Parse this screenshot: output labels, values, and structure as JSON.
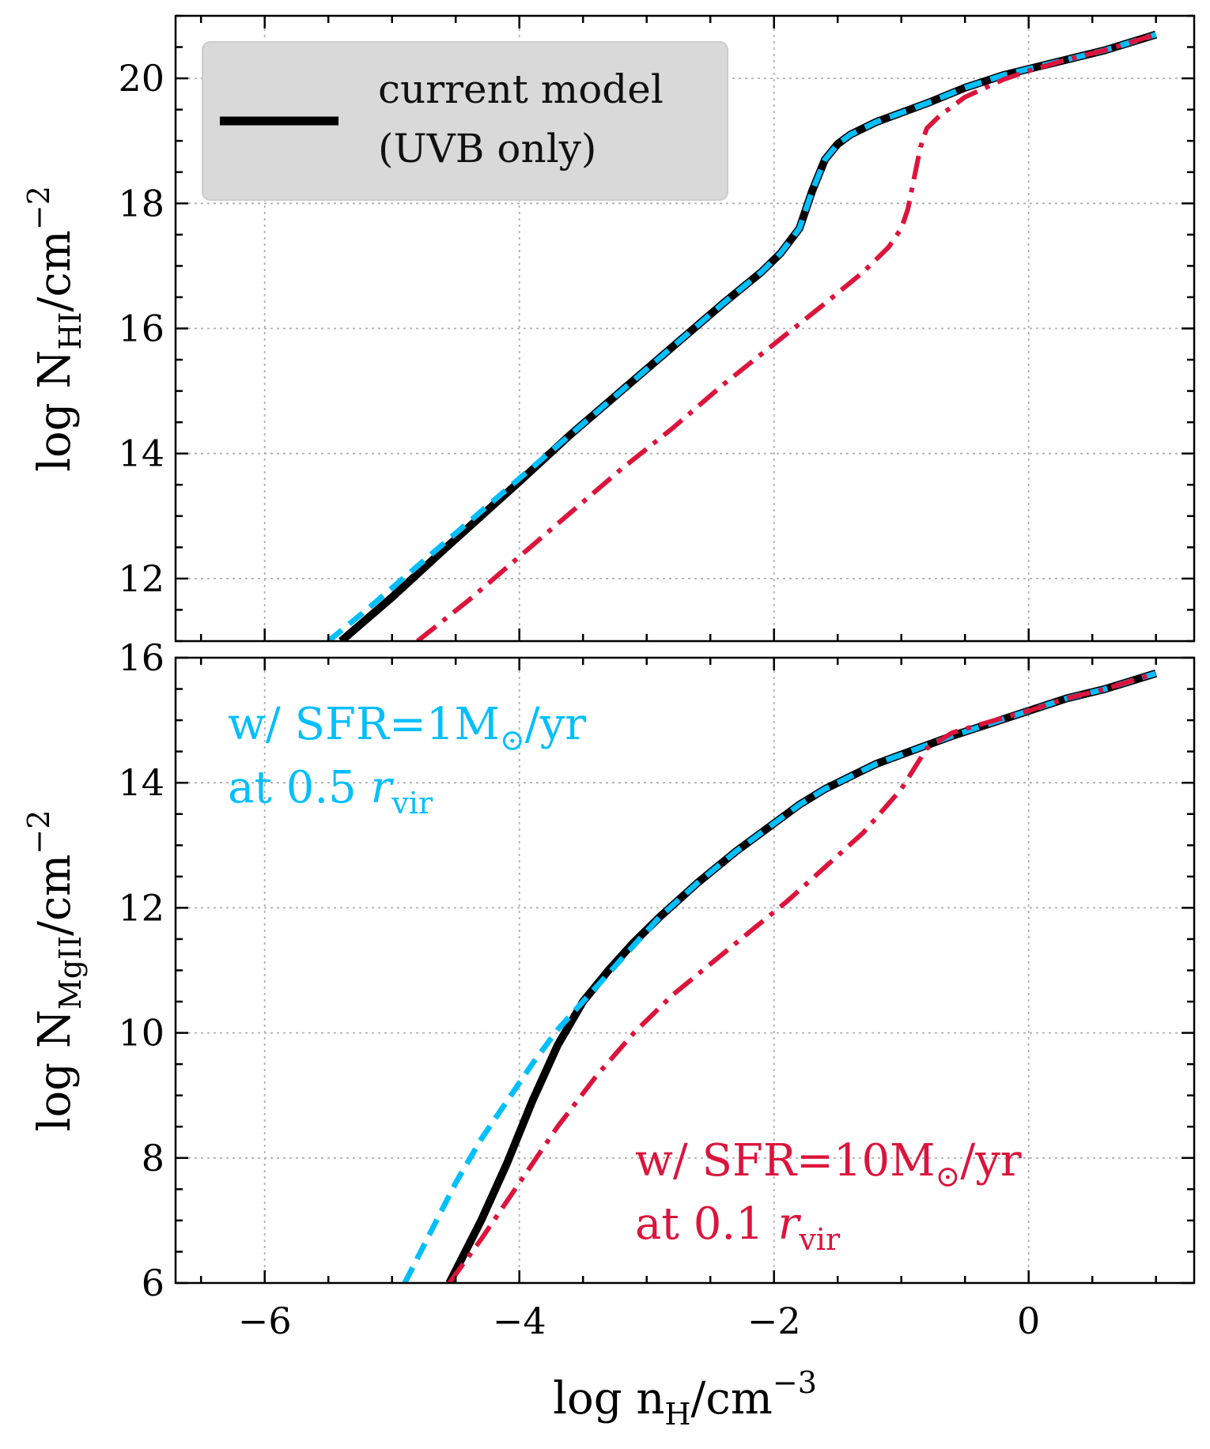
{
  "colors": {
    "uvb": "#000000",
    "sfr1": "#00BFFF",
    "sfr10": "#DC143C",
    "legend_bg": "#d9d9d9"
  },
  "chart_data": [
    {
      "type": "line",
      "panel": "top",
      "xlabel": "log n_H/cm^-3",
      "ylabel_parts": {
        "main": "log N",
        "sub": "HI",
        "unit": "/cm",
        "sup": "−2"
      },
      "xlim": [
        -6.7,
        1.3
      ],
      "ylim": [
        11,
        21
      ],
      "xticks": [
        -6,
        -4,
        -2,
        0
      ],
      "yticks": [
        12,
        14,
        16,
        18,
        20
      ],
      "ytick_labels": [
        "12",
        "14",
        "16",
        "18",
        "20"
      ],
      "legend": {
        "line1": "current model",
        "line2": "(UVB only)",
        "position": "top-left"
      },
      "series": [
        {
          "name": "current model (UVB only)",
          "style": "solid",
          "color_key": "uvb",
          "x": [
            -5.4,
            -5.2,
            -5.0,
            -4.6,
            -4.0,
            -3.6,
            -3.2,
            -2.8,
            -2.4,
            -2.1,
            -1.95,
            -1.8,
            -1.7,
            -1.6,
            -1.5,
            -1.4,
            -1.2,
            -1.0,
            -0.8,
            -0.5,
            -0.2,
            0.0,
            0.3,
            0.6,
            1.0
          ],
          "y": [
            11.0,
            11.35,
            11.7,
            12.45,
            13.55,
            14.3,
            15.0,
            15.7,
            16.4,
            16.9,
            17.2,
            17.6,
            18.2,
            18.7,
            18.95,
            19.1,
            19.3,
            19.45,
            19.6,
            19.85,
            20.05,
            20.15,
            20.3,
            20.45,
            20.7
          ]
        },
        {
          "name": "w/ SFR=1 Msun/yr at 0.5 r_vir",
          "style": "dashed",
          "color_key": "sfr1",
          "x": [
            -5.5,
            -5.2,
            -5.0,
            -4.6,
            -4.0,
            -3.6,
            -3.2,
            -2.8,
            -2.4,
            -2.1,
            -1.95,
            -1.8,
            -1.7,
            -1.6,
            -1.5,
            -1.4,
            -1.2,
            -1.0,
            -0.8,
            -0.5,
            -0.2,
            0.0,
            0.3,
            0.6,
            1.0
          ],
          "y": [
            11.0,
            11.5,
            11.85,
            12.55,
            13.6,
            14.3,
            15.0,
            15.7,
            16.4,
            16.9,
            17.2,
            17.6,
            18.2,
            18.7,
            18.95,
            19.1,
            19.3,
            19.45,
            19.6,
            19.85,
            20.05,
            20.15,
            20.3,
            20.45,
            20.7
          ]
        },
        {
          "name": "w/ SFR=10 Msun/yr at 0.1 r_vir",
          "style": "dashdot",
          "color_key": "sfr10",
          "x": [
            -4.8,
            -4.4,
            -4.0,
            -3.6,
            -3.2,
            -2.8,
            -2.4,
            -2.0,
            -1.6,
            -1.3,
            -1.1,
            -1.0,
            -0.95,
            -0.9,
            -0.85,
            -0.8,
            -0.7,
            -0.5,
            -0.2,
            0.0,
            0.3,
            0.6,
            1.0
          ],
          "y": [
            11.0,
            11.65,
            12.35,
            13.05,
            13.75,
            14.4,
            15.1,
            15.75,
            16.4,
            16.9,
            17.3,
            17.6,
            17.9,
            18.4,
            18.9,
            19.2,
            19.4,
            19.7,
            19.98,
            20.12,
            20.3,
            20.45,
            20.7
          ]
        }
      ]
    },
    {
      "type": "line",
      "panel": "bottom",
      "xlabel": "log n_H/cm^-3",
      "xlabel_parts": {
        "main": "log n",
        "sub": "H",
        "unit": "/cm",
        "sup": "−3"
      },
      "ylabel_parts": {
        "main": "log N",
        "sub": "MgII",
        "unit": "/cm",
        "sup": "−2"
      },
      "xlim": [
        -6.7,
        1.3
      ],
      "ylim": [
        6,
        16
      ],
      "xticks": [
        -6,
        -4,
        -2,
        0
      ],
      "xtick_labels": [
        "−6",
        "−4",
        "−2",
        "0"
      ],
      "yticks": [
        6,
        8,
        10,
        12,
        14,
        16
      ],
      "ytick_labels": [
        "6",
        "8",
        "10",
        "12",
        "14",
        "16"
      ],
      "annotations": [
        {
          "color_key": "sfr1",
          "line1": "w/ SFR=1M",
          "line1_sub": "⊙",
          "line1_end": "/yr",
          "line2": "at 0.5 ",
          "line2_var": "r",
          "line2_sub": "vir",
          "position": "top-left"
        },
        {
          "color_key": "sfr10",
          "line1": "w/ SFR=10M",
          "line1_sub": "⊙",
          "line1_end": "/yr",
          "line2": "at 0.1 ",
          "line2_var": "r",
          "line2_sub": "vir",
          "position": "bottom-right"
        }
      ],
      "series": [
        {
          "name": "current model (UVB only)",
          "style": "solid",
          "color_key": "uvb",
          "x": [
            -4.55,
            -4.3,
            -4.1,
            -3.9,
            -3.7,
            -3.5,
            -3.3,
            -3.1,
            -2.9,
            -2.6,
            -2.3,
            -2.0,
            -1.8,
            -1.6,
            -1.4,
            -1.2,
            -1.0,
            -0.8,
            -0.6,
            -0.3,
            0.0,
            0.3,
            0.6,
            1.0
          ],
          "y": [
            6.0,
            7.0,
            7.9,
            8.9,
            9.8,
            10.5,
            11.0,
            11.45,
            11.85,
            12.4,
            12.9,
            13.35,
            13.65,
            13.9,
            14.1,
            14.3,
            14.45,
            14.6,
            14.75,
            14.95,
            15.15,
            15.35,
            15.5,
            15.75
          ]
        },
        {
          "name": "w/ SFR=1 Msun/yr at 0.5 r_vir",
          "style": "dashed",
          "color_key": "sfr1",
          "x": [
            -4.9,
            -4.7,
            -4.5,
            -4.3,
            -4.1,
            -3.9,
            -3.7,
            -3.5,
            -3.3,
            -3.1,
            -2.9,
            -2.6,
            -2.3,
            -2.0,
            -1.8,
            -1.6,
            -1.4,
            -1.2,
            -1.0,
            -0.8,
            -0.6,
            -0.3,
            0.0,
            0.3,
            0.6,
            1.0
          ],
          "y": [
            6.0,
            6.8,
            7.6,
            8.3,
            8.9,
            9.5,
            10.05,
            10.5,
            10.95,
            11.4,
            11.85,
            12.4,
            12.9,
            13.35,
            13.65,
            13.9,
            14.1,
            14.3,
            14.45,
            14.6,
            14.75,
            14.95,
            15.15,
            15.35,
            15.5,
            15.75
          ]
        },
        {
          "name": "w/ SFR=10 Msun/yr at 0.1 r_vir",
          "style": "dashdot",
          "color_key": "sfr10",
          "x": [
            -4.55,
            -4.3,
            -4.0,
            -3.7,
            -3.4,
            -3.1,
            -2.8,
            -2.5,
            -2.2,
            -1.9,
            -1.6,
            -1.3,
            -1.0,
            -0.8,
            -0.6,
            -0.3,
            0.0,
            0.3,
            0.6,
            1.0
          ],
          "y": [
            6.0,
            6.7,
            7.6,
            8.5,
            9.3,
            10.0,
            10.6,
            11.1,
            11.6,
            12.1,
            12.65,
            13.2,
            13.9,
            14.55,
            14.8,
            14.98,
            15.15,
            15.35,
            15.5,
            15.75
          ]
        }
      ]
    }
  ]
}
